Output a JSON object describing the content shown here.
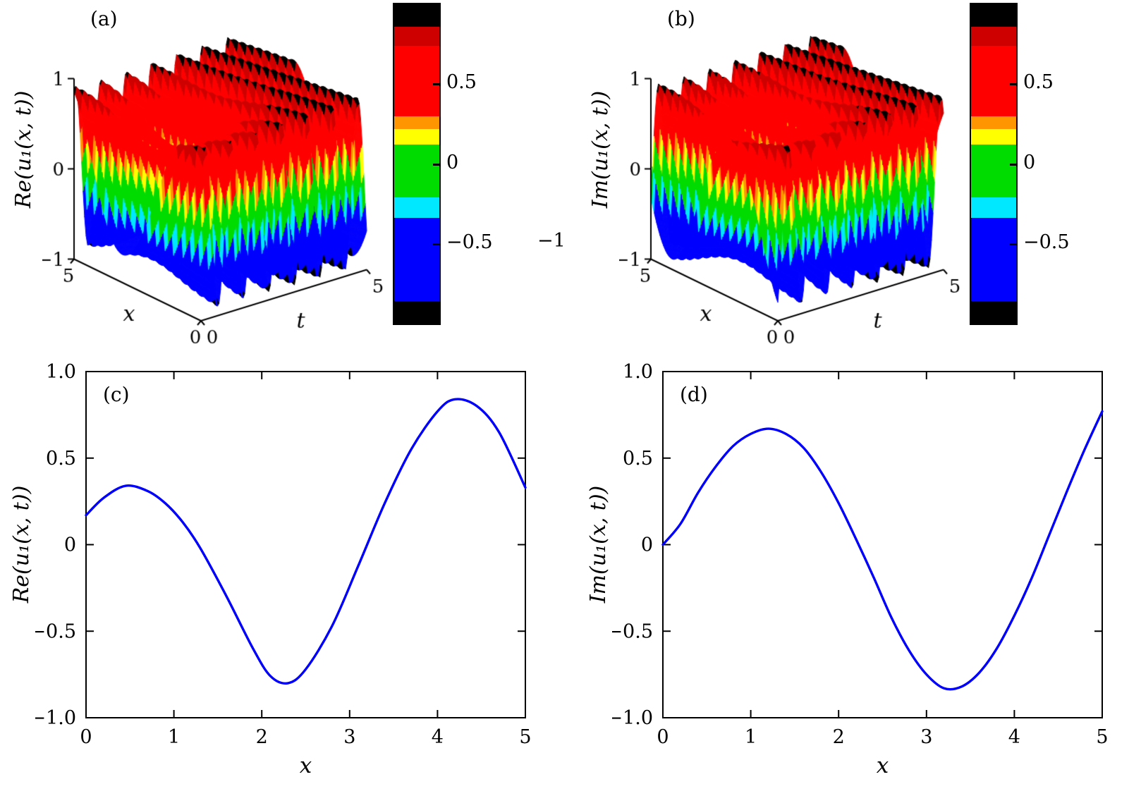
{
  "figure": {
    "background": "#ffffff"
  },
  "stray_label": {
    "text": "−1"
  },
  "colormap_stops": [
    {
      "min": 0.86,
      "max": 1.0,
      "color": "#000000"
    },
    {
      "min": 0.74,
      "max": 0.86,
      "color": "#cf0000"
    },
    {
      "min": 0.3,
      "max": 0.74,
      "color": "#ff0000"
    },
    {
      "min": 0.22,
      "max": 0.3,
      "color": "#ff9500"
    },
    {
      "min": 0.12,
      "max": 0.22,
      "color": "#ffff00"
    },
    {
      "min": -0.21,
      "max": 0.12,
      "color": "#00dc00"
    },
    {
      "min": -0.34,
      "max": -0.21,
      "color": "#00e8ff"
    },
    {
      "min": -0.86,
      "max": -0.34,
      "color": "#0000ff"
    },
    {
      "min": -1.0,
      "max": -0.86,
      "color": "#000000"
    }
  ],
  "chart_data": [
    {
      "type": "surface",
      "tag": "(a)",
      "zlabel": "Re(u₁(x, t))",
      "xlabel": "x",
      "tlabel": "t",
      "x_range": [
        0,
        5
      ],
      "t_range": [
        0,
        5
      ],
      "z_range": [
        -1,
        1
      ],
      "z_ticks": [
        {
          "v": 1,
          "label": "1"
        },
        {
          "v": 0,
          "label": "0"
        },
        {
          "v": -1,
          "label": "−1"
        }
      ],
      "x_ticks": [
        {
          "v": 5,
          "label": "5"
        },
        {
          "v": 0,
          "label": "0"
        }
      ],
      "t_ticks": [
        {
          "v": 0,
          "label": "0"
        },
        {
          "v": 5,
          "label": "5"
        }
      ],
      "colorbar_ticks": [
        {
          "v": 0.5,
          "label": "0.5"
        },
        {
          "v": 0,
          "label": "0"
        },
        {
          "v": -0.5,
          "label": "−0.5"
        }
      ],
      "model": {
        "amp": 0.93,
        "kx": 1.4,
        "om": 8.2,
        "phase": 0.5,
        "dip_amp": 0.5,
        "dip_x": 2.5,
        "dip_t": 1.1,
        "dip_sx": 1.1,
        "dip_st": 1.0
      }
    },
    {
      "type": "surface",
      "tag": "(b)",
      "zlabel": "Im(u₁(x, t))",
      "xlabel": "x",
      "tlabel": "t",
      "x_range": [
        0,
        5
      ],
      "t_range": [
        0,
        5
      ],
      "z_range": [
        -1,
        1
      ],
      "z_ticks": [
        {
          "v": 1,
          "label": "1"
        },
        {
          "v": 0,
          "label": "0"
        },
        {
          "v": -1,
          "label": "−1"
        }
      ],
      "x_ticks": [
        {
          "v": 5,
          "label": "5"
        },
        {
          "v": 0,
          "label": "0"
        }
      ],
      "t_ticks": [
        {
          "v": 0,
          "label": "0"
        },
        {
          "v": 5,
          "label": "5"
        }
      ],
      "colorbar_ticks": [
        {
          "v": 0.5,
          "label": "0.5"
        },
        {
          "v": 0,
          "label": "0"
        },
        {
          "v": -0.5,
          "label": "−0.5"
        }
      ],
      "model": {
        "amp": 0.93,
        "kx": 1.4,
        "om": 8.2,
        "phase": -1.07,
        "dip_amp": 0.5,
        "dip_x": 2.3,
        "dip_t": 1.4,
        "dip_sx": 1.1,
        "dip_st": 1.0
      }
    },
    {
      "type": "line",
      "tag": "(c)",
      "xlabel": "x",
      "ylabel": "Re(u₁(x, t))",
      "xlim": [
        0,
        5
      ],
      "ylim": [
        -1,
        1
      ],
      "line_color": "#0000ff",
      "x_ticks": [
        {
          "v": 0,
          "label": "0"
        },
        {
          "v": 1,
          "label": "1"
        },
        {
          "v": 2,
          "label": "2"
        },
        {
          "v": 3,
          "label": "3"
        },
        {
          "v": 4,
          "label": "4"
        },
        {
          "v": 5,
          "label": "5"
        }
      ],
      "y_ticks": [
        {
          "v": 1,
          "label": "1.0"
        },
        {
          "v": 0.5,
          "label": "0.5"
        },
        {
          "v": 0,
          "label": "0"
        },
        {
          "v": -0.5,
          "label": "−0.5"
        },
        {
          "v": -1,
          "label": "−1.0"
        }
      ],
      "x": [
        0,
        0.2,
        0.45,
        0.7,
        0.9,
        1.1,
        1.3,
        1.6,
        1.9,
        2.1,
        2.3,
        2.5,
        2.8,
        3.1,
        3.4,
        3.7,
        4.0,
        4.2,
        4.45,
        4.7,
        5.0
      ],
      "y": [
        0.17,
        0.27,
        0.34,
        0.31,
        0.24,
        0.13,
        -0.02,
        -0.3,
        -0.6,
        -0.76,
        -0.8,
        -0.72,
        -0.47,
        -0.12,
        0.24,
        0.55,
        0.77,
        0.84,
        0.8,
        0.65,
        0.33
      ]
    },
    {
      "type": "line",
      "tag": "(d)",
      "xlabel": "x",
      "ylabel": "Im(u₁(x, t))",
      "xlim": [
        0,
        5
      ],
      "ylim": [
        -1,
        1
      ],
      "line_color": "#0000ff",
      "x_ticks": [
        {
          "v": 0,
          "label": "0"
        },
        {
          "v": 1,
          "label": "1"
        },
        {
          "v": 2,
          "label": "2"
        },
        {
          "v": 3,
          "label": "3"
        },
        {
          "v": 4,
          "label": "4"
        },
        {
          "v": 5,
          "label": "5"
        }
      ],
      "y_ticks": [
        {
          "v": 1,
          "label": "1.0"
        },
        {
          "v": 0.5,
          "label": "0.5"
        },
        {
          "v": 0,
          "label": "0"
        },
        {
          "v": -0.5,
          "label": "−0.5"
        },
        {
          "v": -1,
          "label": "−1.0"
        }
      ],
      "x": [
        0,
        0.2,
        0.4,
        0.6,
        0.8,
        1.0,
        1.2,
        1.4,
        1.6,
        1.8,
        2.0,
        2.2,
        2.4,
        2.6,
        2.8,
        3.0,
        3.2,
        3.4,
        3.6,
        3.8,
        4.0,
        4.2,
        4.4,
        4.6,
        4.8,
        5.0
      ],
      "y": [
        0.0,
        0.12,
        0.3,
        0.45,
        0.57,
        0.64,
        0.67,
        0.64,
        0.56,
        0.42,
        0.24,
        0.03,
        -0.19,
        -0.42,
        -0.61,
        -0.75,
        -0.83,
        -0.82,
        -0.74,
        -0.6,
        -0.41,
        -0.19,
        0.06,
        0.31,
        0.55,
        0.77
      ]
    }
  ]
}
